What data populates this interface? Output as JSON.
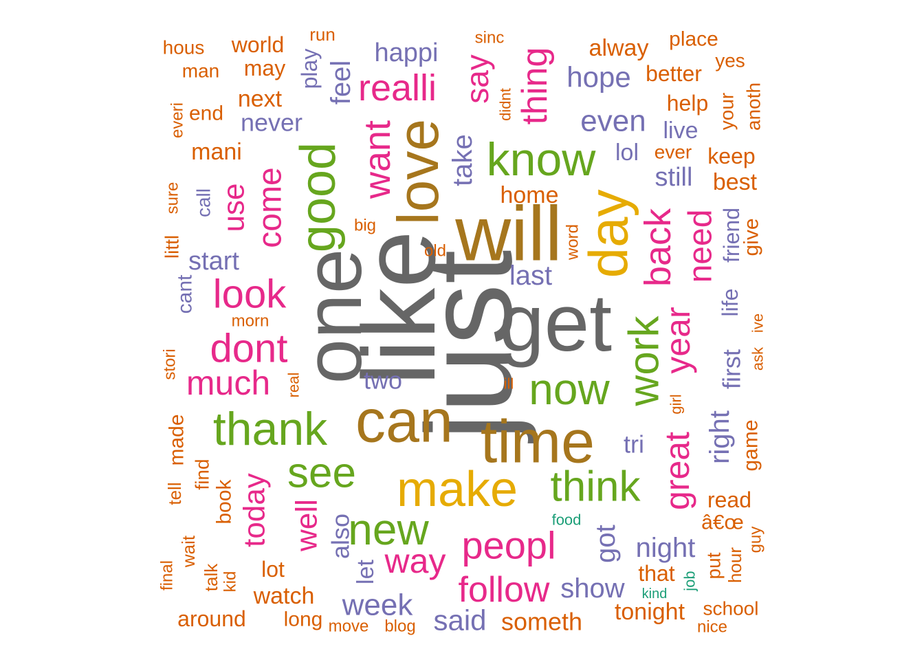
{
  "palette": {
    "orange": "#D95F02",
    "purple": "#7570B3",
    "magenta": "#E7298A",
    "green": "#66A61E",
    "gold": "#E6AB02",
    "brown": "#A6761D",
    "gray": "#666666",
    "teal": "#1B9E77"
  },
  "words": [
    {
      "text": "just",
      "color": "gray"
    },
    {
      "text": "like",
      "color": "gray"
    },
    {
      "text": "get",
      "color": "gray"
    },
    {
      "text": "will",
      "color": "brown"
    },
    {
      "text": "one",
      "color": "gray"
    },
    {
      "text": "can",
      "color": "brown"
    },
    {
      "text": "time",
      "color": "brown"
    },
    {
      "text": "love",
      "color": "brown"
    },
    {
      "text": "day",
      "color": "gold"
    },
    {
      "text": "make",
      "color": "gold"
    },
    {
      "text": "good",
      "color": "green"
    },
    {
      "text": "know",
      "color": "green"
    },
    {
      "text": "thank",
      "color": "green"
    },
    {
      "text": "now",
      "color": "green"
    },
    {
      "text": "new",
      "color": "green"
    },
    {
      "text": "think",
      "color": "green"
    },
    {
      "text": "see",
      "color": "green"
    },
    {
      "text": "work",
      "color": "green"
    },
    {
      "text": "peopl",
      "color": "magenta"
    },
    {
      "text": "look",
      "color": "magenta"
    },
    {
      "text": "dont",
      "color": "magenta"
    },
    {
      "text": "want",
      "color": "magenta"
    },
    {
      "text": "back",
      "color": "magenta"
    },
    {
      "text": "year",
      "color": "magenta"
    },
    {
      "text": "great",
      "color": "magenta"
    },
    {
      "text": "realli",
      "color": "magenta"
    },
    {
      "text": "thing",
      "color": "magenta"
    },
    {
      "text": "need",
      "color": "magenta"
    },
    {
      "text": "much",
      "color": "magenta"
    },
    {
      "text": "come",
      "color": "magenta"
    },
    {
      "text": "follow",
      "color": "magenta"
    },
    {
      "text": "way",
      "color": "magenta"
    },
    {
      "text": "say",
      "color": "magenta"
    },
    {
      "text": "well",
      "color": "magenta"
    },
    {
      "text": "today",
      "color": "magenta"
    },
    {
      "text": "use",
      "color": "magenta"
    },
    {
      "text": "take",
      "color": "purple"
    },
    {
      "text": "even",
      "color": "purple"
    },
    {
      "text": "got",
      "color": "purple"
    },
    {
      "text": "week",
      "color": "purple"
    },
    {
      "text": "said",
      "color": "purple"
    },
    {
      "text": "show",
      "color": "purple"
    },
    {
      "text": "night",
      "color": "purple"
    },
    {
      "text": "hope",
      "color": "purple"
    },
    {
      "text": "happi",
      "color": "purple"
    },
    {
      "text": "feel",
      "color": "purple"
    },
    {
      "text": "start",
      "color": "purple"
    },
    {
      "text": "never",
      "color": "purple"
    },
    {
      "text": "last",
      "color": "purple"
    },
    {
      "text": "still",
      "color": "purple"
    },
    {
      "text": "right",
      "color": "purple"
    },
    {
      "text": "first",
      "color": "purple"
    },
    {
      "text": "also",
      "color": "purple"
    },
    {
      "text": "two",
      "color": "purple"
    },
    {
      "text": "tri",
      "color": "purple"
    },
    {
      "text": "lol",
      "color": "purple"
    },
    {
      "text": "let",
      "color": "purple"
    },
    {
      "text": "friend",
      "color": "purple"
    },
    {
      "text": "life",
      "color": "purple"
    },
    {
      "text": "live",
      "color": "purple"
    },
    {
      "text": "play",
      "color": "purple"
    },
    {
      "text": "call",
      "color": "purple"
    },
    {
      "text": "cant",
      "color": "purple"
    },
    {
      "text": "world",
      "color": "orange"
    },
    {
      "text": "may",
      "color": "orange"
    },
    {
      "text": "next",
      "color": "orange"
    },
    {
      "text": "mani",
      "color": "orange"
    },
    {
      "text": "man",
      "color": "orange"
    },
    {
      "text": "hous",
      "color": "orange"
    },
    {
      "text": "run",
      "color": "orange"
    },
    {
      "text": "sinc",
      "color": "orange"
    },
    {
      "text": "alway",
      "color": "orange"
    },
    {
      "text": "place",
      "color": "orange"
    },
    {
      "text": "yes",
      "color": "orange"
    },
    {
      "text": "better",
      "color": "orange"
    },
    {
      "text": "help",
      "color": "orange"
    },
    {
      "text": "your",
      "color": "orange"
    },
    {
      "text": "anoth",
      "color": "orange"
    },
    {
      "text": "keep",
      "color": "orange"
    },
    {
      "text": "best",
      "color": "orange"
    },
    {
      "text": "give",
      "color": "orange"
    },
    {
      "text": "ever",
      "color": "orange"
    },
    {
      "text": "home",
      "color": "orange"
    },
    {
      "text": "didnt",
      "color": "orange"
    },
    {
      "text": "end",
      "color": "orange"
    },
    {
      "text": "everi",
      "color": "orange"
    },
    {
      "text": "sure",
      "color": "orange"
    },
    {
      "text": "littl",
      "color": "orange"
    },
    {
      "text": "big",
      "color": "orange"
    },
    {
      "text": "word",
      "color": "orange"
    },
    {
      "text": "old",
      "color": "orange"
    },
    {
      "text": "morn",
      "color": "orange"
    },
    {
      "text": "stori",
      "color": "orange"
    },
    {
      "text": "real",
      "color": "orange"
    },
    {
      "text": "ill",
      "color": "orange"
    },
    {
      "text": "girl",
      "color": "orange"
    },
    {
      "text": "ask",
      "color": "orange"
    },
    {
      "text": "ive",
      "color": "orange"
    },
    {
      "text": "made",
      "color": "orange"
    },
    {
      "text": "find",
      "color": "orange"
    },
    {
      "text": "book",
      "color": "orange"
    },
    {
      "text": "tell",
      "color": "orange"
    },
    {
      "text": "game",
      "color": "orange"
    },
    {
      "text": "read",
      "color": "orange"
    },
    {
      "text": "â€œ",
      "color": "orange"
    },
    {
      "text": "guy",
      "color": "orange"
    },
    {
      "text": "hour",
      "color": "orange"
    },
    {
      "text": "put",
      "color": "orange"
    },
    {
      "text": "that",
      "color": "orange"
    },
    {
      "text": "lot",
      "color": "orange"
    },
    {
      "text": "wait",
      "color": "orange"
    },
    {
      "text": "talk",
      "color": "orange"
    },
    {
      "text": "kid",
      "color": "orange"
    },
    {
      "text": "final",
      "color": "orange"
    },
    {
      "text": "watch",
      "color": "orange"
    },
    {
      "text": "around",
      "color": "orange"
    },
    {
      "text": "long",
      "color": "orange"
    },
    {
      "text": "move",
      "color": "orange"
    },
    {
      "text": "blog",
      "color": "orange"
    },
    {
      "text": "someth",
      "color": "orange"
    },
    {
      "text": "tonight",
      "color": "orange"
    },
    {
      "text": "school",
      "color": "orange"
    },
    {
      "text": "nice",
      "color": "orange"
    },
    {
      "text": "food",
      "color": "teal"
    },
    {
      "text": "kind",
      "color": "teal"
    },
    {
      "text": "job",
      "color": "teal"
    }
  ]
}
